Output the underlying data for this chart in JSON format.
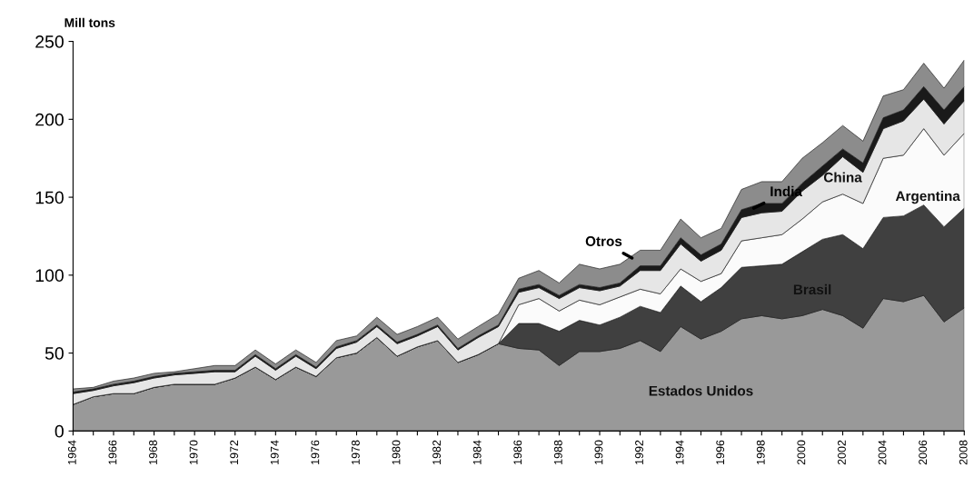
{
  "chart_data": {
    "type": "area",
    "stacked": true,
    "ylabel": "Mill tons",
    "x": [
      1964,
      1965,
      1966,
      1967,
      1968,
      1969,
      1970,
      1971,
      1972,
      1973,
      1974,
      1975,
      1976,
      1977,
      1978,
      1979,
      1980,
      1981,
      1982,
      1983,
      1984,
      1985,
      1986,
      1987,
      1988,
      1989,
      1990,
      1991,
      1992,
      1993,
      1994,
      1995,
      1996,
      1997,
      1998,
      1999,
      2000,
      2001,
      2002,
      2003,
      2004,
      2005,
      2006,
      2007,
      2008
    ],
    "series": [
      {
        "name": "Estados Unidos",
        "color": "#999999",
        "values": [
          17,
          22,
          24,
          24,
          28,
          30,
          30,
          30,
          34,
          41,
          33,
          41,
          35,
          47,
          50,
          60,
          48,
          54,
          58,
          44,
          49,
          56,
          53,
          52,
          42,
          51,
          51,
          53,
          58,
          51,
          67,
          59,
          64,
          72,
          74,
          72,
          74,
          78,
          74,
          66,
          85,
          83,
          87,
          70,
          79
        ]
      },
      {
        "name": "Brasil",
        "color": "#404040",
        "values": [
          0,
          0,
          0,
          0,
          0,
          0,
          0,
          0,
          0,
          0,
          0,
          0,
          0,
          0,
          0,
          0,
          0,
          0,
          0,
          0,
          0,
          0,
          16,
          17,
          22,
          20,
          17,
          20,
          22,
          25,
          26,
          24,
          28,
          33,
          32,
          35,
          41,
          45,
          52,
          51,
          52,
          55,
          58,
          61,
          64
        ]
      },
      {
        "name": "Argentina",
        "color": "#fbfbfb",
        "values": [
          0,
          0,
          0,
          0,
          0,
          0,
          0,
          0,
          0,
          0,
          0,
          0,
          0,
          0,
          0,
          0,
          0,
          0,
          0,
          0,
          0,
          0,
          12,
          16,
          13,
          13,
          13,
          13,
          11,
          12,
          11,
          13,
          9,
          17,
          18,
          19,
          21,
          24,
          26,
          29,
          38,
          39,
          49,
          46,
          48
        ]
      },
      {
        "name": "China",
        "color": "#e6e6e6",
        "values": [
          7,
          4,
          5,
          7,
          6,
          6,
          7,
          8,
          4,
          7,
          6,
          7,
          5,
          6,
          7,
          7,
          8,
          7,
          9,
          8,
          11,
          11,
          8,
          7,
          8,
          8,
          9,
          7,
          12,
          15,
          16,
          13,
          15,
          15,
          16,
          15,
          18,
          17,
          24,
          20,
          19,
          22,
          19,
          20,
          21
        ]
      },
      {
        "name": "India",
        "color": "#1a1a1a",
        "values": [
          1,
          1,
          1,
          1,
          1,
          1,
          1,
          1,
          1,
          1,
          1,
          1,
          1,
          1,
          1,
          1,
          1,
          1,
          1,
          1,
          1,
          1,
          2,
          2,
          2,
          2,
          2,
          2,
          3,
          3,
          4,
          4,
          4,
          5,
          6,
          5,
          5,
          6,
          5,
          6,
          7,
          7,
          8,
          9,
          9
        ]
      },
      {
        "name": "Otros",
        "color": "#8c8c8c",
        "values": [
          2,
          1,
          2,
          2,
          2,
          1,
          2,
          3,
          3,
          3,
          3,
          3,
          3,
          4,
          3,
          5,
          5,
          5,
          5,
          6,
          6,
          7,
          7,
          9,
          8,
          13,
          12,
          12,
          10,
          10,
          12,
          11,
          10,
          13,
          14,
          14,
          16,
          15,
          15,
          14,
          14,
          13,
          15,
          14,
          17
        ]
      }
    ],
    "xlim": [
      1964,
      2008
    ],
    "xticks": [
      1964,
      {
        "value": 1965,
        "label": null
      },
      1966,
      {
        "value": 1967,
        "label": null
      },
      1968,
      {
        "value": 1969,
        "label": null
      },
      1970,
      {
        "value": 1971,
        "label": null
      },
      1972,
      {
        "value": 1973,
        "label": null
      },
      1974,
      {
        "value": 1975,
        "label": null
      },
      1976,
      {
        "value": 1977,
        "label": null
      },
      1978,
      {
        "value": 1979,
        "label": null
      },
      1980,
      {
        "value": 1981,
        "label": null
      },
      1982,
      {
        "value": 1983,
        "label": null
      },
      1984,
      {
        "value": 1985,
        "label": null
      },
      1986,
      {
        "value": 1987,
        "label": null
      },
      1988,
      {
        "value": 1989,
        "label": null
      },
      1990,
      {
        "value": 1991,
        "label": null
      },
      1992,
      {
        "value": 1993,
        "label": null
      },
      1994,
      {
        "value": 1995,
        "label": null
      },
      1996,
      {
        "value": 1997,
        "label": null
      },
      1998,
      {
        "value": 1999,
        "label": null
      },
      2000,
      {
        "value": 2001,
        "label": null
      },
      2002,
      {
        "value": 2003,
        "label": null
      },
      2004,
      {
        "value": 2005,
        "label": null
      },
      2006,
      {
        "value": 2007,
        "label": null
      },
      2008
    ],
    "ylim": [
      0,
      250
    ],
    "yticks": [
      0,
      50,
      100,
      150,
      200,
      250
    ],
    "grid": false,
    "legend": false
  }
}
